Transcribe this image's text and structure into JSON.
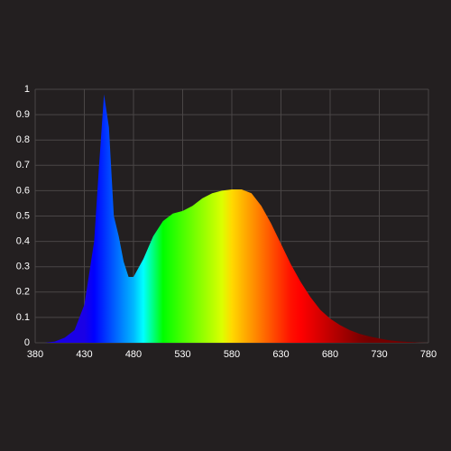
{
  "chart_data": {
    "type": "area",
    "fill": "spectrum",
    "grid": true,
    "background": "#231f20",
    "grid_color": "#4a4646",
    "text_color": "#ffffff",
    "x": [
      380,
      390,
      400,
      410,
      420,
      430,
      440,
      445,
      450,
      455,
      460,
      465,
      470,
      475,
      480,
      490,
      500,
      510,
      520,
      530,
      540,
      550,
      560,
      570,
      580,
      590,
      600,
      610,
      620,
      630,
      640,
      650,
      660,
      670,
      680,
      690,
      700,
      710,
      720,
      730,
      740,
      750,
      760,
      770,
      780
    ],
    "values": [
      0,
      0,
      0.005,
      0.02,
      0.05,
      0.15,
      0.4,
      0.7,
      0.98,
      0.85,
      0.5,
      0.42,
      0.32,
      0.26,
      0.26,
      0.33,
      0.42,
      0.48,
      0.51,
      0.52,
      0.54,
      0.57,
      0.59,
      0.6,
      0.605,
      0.605,
      0.59,
      0.54,
      0.47,
      0.39,
      0.31,
      0.24,
      0.18,
      0.13,
      0.095,
      0.07,
      0.05,
      0.035,
      0.025,
      0.017,
      0.01,
      0.006,
      0.003,
      0.001,
      0
    ],
    "xlim": [
      380,
      780
    ],
    "xticks": [
      380,
      430,
      480,
      530,
      580,
      630,
      680,
      730,
      780
    ],
    "ylim": [
      0,
      1
    ],
    "yticks": [
      0,
      0.1,
      0.2,
      0.3,
      0.4,
      0.5,
      0.6,
      0.7,
      0.8,
      0.9,
      1
    ]
  }
}
